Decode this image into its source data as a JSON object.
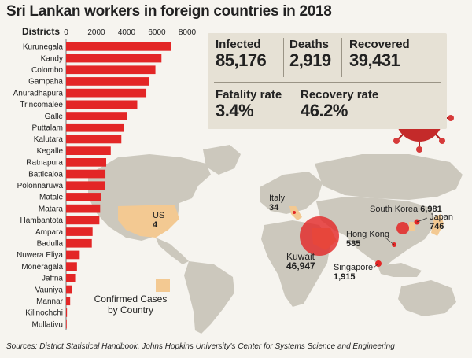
{
  "title": "Sri Lankan workers in foreign countries in 2018",
  "chart_data": {
    "type": "bar",
    "orientation": "horizontal",
    "axis_title": "Districts",
    "ticks": [
      0,
      2000,
      4000,
      6000,
      8000
    ],
    "xlim": [
      0,
      8000
    ],
    "grid": false,
    "categories": [
      "Kurunegala",
      "Kandy",
      "Colombo",
      "Gampaha",
      "Anuradhapura",
      "Trincomalee",
      "Galle",
      "Puttalam",
      "Kalutara",
      "Kegalle",
      "Ratnapura",
      "Batticaloa",
      "Polonnaruwa",
      "Matale",
      "Matara",
      "Hambantota",
      "Ampara",
      "Badulla",
      "Nuwera Eliya",
      "Moneragala",
      "Jaffna",
      "Vauniya",
      "Mannar",
      "Kilinochchi",
      "Mullativu"
    ],
    "values": [
      6950,
      6300,
      5900,
      5500,
      5300,
      4700,
      4000,
      3800,
      3650,
      2950,
      2650,
      2600,
      2550,
      2300,
      2250,
      2200,
      1750,
      1700,
      900,
      720,
      600,
      400,
      270,
      60,
      40
    ],
    "color": "#e32626"
  },
  "stats": {
    "infected_label": "Infected",
    "infected_value": "85,176",
    "deaths_label": "Deaths",
    "deaths_value": "2,919",
    "recovered_label": "Recovered",
    "recovered_value": "39,431",
    "fatality_label": "Fatality rate",
    "fatality_value": "3.4%",
    "recovery_label": "Recovery rate",
    "recovery_value": "46.2%"
  },
  "map": {
    "land_color": "#ccc8bd",
    "highlight_color": "#f3c992",
    "bubble_color": "#e32626",
    "countries": [
      {
        "name": "US",
        "value": "4"
      },
      {
        "name": "Italy",
        "value": "34"
      },
      {
        "name": "South Korea",
        "value": "6,981"
      },
      {
        "name": "Japan",
        "value": "746"
      },
      {
        "name": "Hong Kong",
        "value": "585"
      },
      {
        "name": "Kuwait",
        "value": "46,947"
      },
      {
        "name": "Singapore",
        "value": "1,915"
      }
    ]
  },
  "legend": {
    "label": "Confirmed Cases by Country"
  },
  "source": "Sources: District Statistical Handbook, Johns Hopkins University's Center for Systems Science and Engineering"
}
